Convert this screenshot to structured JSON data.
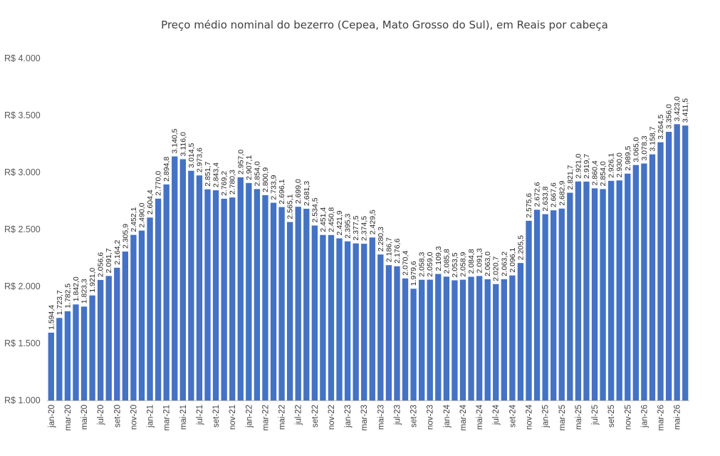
{
  "chart_data": {
    "type": "bar",
    "title": "Preço médio nominal do bezerro (Cepea, Mato Grosso do Sul), em Reais por cabeça",
    "xlabel": "",
    "ylabel": "",
    "ylim": [
      1000,
      4000
    ],
    "yticks": [
      {
        "value": 1000,
        "label": "R$ 1.000"
      },
      {
        "value": 1500,
        "label": "R$ 1.500"
      },
      {
        "value": 2000,
        "label": "R$ 2.000"
      },
      {
        "value": 2500,
        "label": "R$ 2.500"
      },
      {
        "value": 3000,
        "label": "R$ 3.000"
      },
      {
        "value": 3500,
        "label": "R$ 3.500"
      },
      {
        "value": 4000,
        "label": "R$ 4.000"
      }
    ],
    "grid": false,
    "legend": "none",
    "bar_color": "#4472C4",
    "categories": [
      "jan-20",
      "fev-20",
      "mar-20",
      "abr-20",
      "mai-20",
      "jun-20",
      "jul-20",
      "ago-20",
      "set-20",
      "out-20",
      "nov-20",
      "dez-20",
      "jan-21",
      "fev-21",
      "mar-21",
      "abr-21",
      "mai-21",
      "jun-21",
      "jul-21",
      "ago-21",
      "set-21",
      "out-21",
      "nov-21",
      "dez-21",
      "jan-22",
      "fev-22",
      "mar-22",
      "abr-22",
      "mai-22",
      "jun-22",
      "jul-22",
      "ago-22",
      "set-22",
      "out-22",
      "nov-22",
      "dez-22",
      "jan-23",
      "fev-23",
      "mar-23",
      "abr-23",
      "mai-23",
      "jun-23",
      "jul-23",
      "ago-23",
      "set-23",
      "out-23",
      "nov-23",
      "dez-23",
      "jan-24",
      "fev-24",
      "mar-24",
      "abr-24",
      "mai-24",
      "jun-24",
      "jul-24",
      "ago-24",
      "set-24",
      "out-24",
      "nov-24",
      "dez-24",
      "jan-25",
      "fev-25",
      "mar-25",
      "abr-25",
      "mai-25",
      "jun-25",
      "jul-25",
      "ago-25",
      "set-25",
      "out-25",
      "nov-25",
      "dez-25",
      "jan-26",
      "fev-26",
      "mar-26",
      "abr-26",
      "mai-26",
      "jun-26"
    ],
    "tick_labels_shown": [
      "jan-20",
      "mar-20",
      "mai-20",
      "jul-20",
      "set-20",
      "nov-20",
      "jan-21",
      "mar-21",
      "mai-21",
      "jul-21",
      "set-21",
      "nov-21",
      "jan-22",
      "mar-22",
      "mai-22",
      "jul-22",
      "set-22",
      "nov-22",
      "jan-23",
      "mar-23",
      "mai-23",
      "jul-23",
      "set-23",
      "nov-23",
      "jan-24",
      "mar-24",
      "mai-24",
      "jul-24",
      "set-24",
      "nov-24",
      "jan-25",
      "mar-25",
      "mai-25",
      "jul-25",
      "set-25",
      "nov-25",
      "jan-26",
      "mar-26",
      "mai-26"
    ],
    "values": [
      1594.4,
      1723.7,
      1782.5,
      1842.0,
      1823.3,
      1921.0,
      2056.6,
      2091.7,
      2164.2,
      2305.9,
      2452.1,
      2490.0,
      2604.4,
      2770.0,
      2894.8,
      3140.5,
      3116.0,
      3014.5,
      2973.6,
      2851.7,
      2843.4,
      2769.2,
      2780.3,
      2957.0,
      2907.1,
      2854.0,
      2800.9,
      2733.9,
      2696.1,
      2565.1,
      2699.0,
      2681.3,
      2534.5,
      2451.4,
      2450.8,
      2421.9,
      2395.3,
      2377.5,
      2374.5,
      2429.5,
      2280.3,
      2186.7,
      2176.6,
      2070.4,
      1979.6,
      2058.3,
      2059.0,
      2109.3,
      2085.8,
      2053.5,
      2058.9,
      2084.8,
      2091.3,
      2063.0,
      2020.7,
      2063.2,
      2096.1,
      2205.5,
      2575.6,
      2672.6,
      2633.8,
      2667.6,
      2682.9,
      2821.7,
      2921.0,
      2919.7,
      2860.4,
      2854.0,
      2926.1,
      2930.0,
      2989.5,
      3065.0,
      3078.3,
      3158.7,
      3264.5,
      3356.0,
      3423.0,
      3411.5
    ],
    "data_labels": [
      "1.594,4",
      "1.723,7",
      "1.782,5",
      "1.842,0",
      "1.823,3",
      "1.921,0",
      "2.056,6",
      "2.091,7",
      "2.164,2",
      "2.305,9",
      "2.452,1",
      "2.490,0",
      "2.604,4",
      "2.770,0",
      "2.894,8",
      "3.140,5",
      "3.116,0",
      "3.014,5",
      "2.973,6",
      "2.851,7",
      "2.843,4",
      "2.769,2",
      "2.780,3",
      "2.957,0",
      "2.907,1",
      "2.854,0",
      "2.800,9",
      "2.733,9",
      "2.696,1",
      "2.565,1",
      "2.699,0",
      "2.681,3",
      "2.534,5",
      "2.451,4",
      "2.450,8",
      "2.421,9",
      "2.395,3",
      "2.377,5",
      "2.374,5",
      "2.429,5",
      "2.280,3",
      "2.186,7",
      "2.176,6",
      "2.070,4",
      "1.979,6",
      "2.058,3",
      "2.059,0",
      "2.109,3",
      "2.085,8",
      "2.053,5",
      "2.058,9",
      "2.084,8",
      "2.091,3",
      "2.063,0",
      "2.020,7",
      "2.063,2",
      "2.096,1",
      "2.205,5",
      "2.575,6",
      "2.672,6",
      "2.633,8",
      "2.667,6",
      "2.682,9",
      "2.821,7",
      "2.921,0",
      "2.919,7",
      "2.860,4",
      "2.854,0",
      "2.926,1",
      "2.930,0",
      "2.989,5",
      "3.065,0",
      "3.078,3",
      "3.158,7",
      "3.264,5",
      "3.356,0",
      "3.423,0",
      "3.411,5"
    ]
  }
}
